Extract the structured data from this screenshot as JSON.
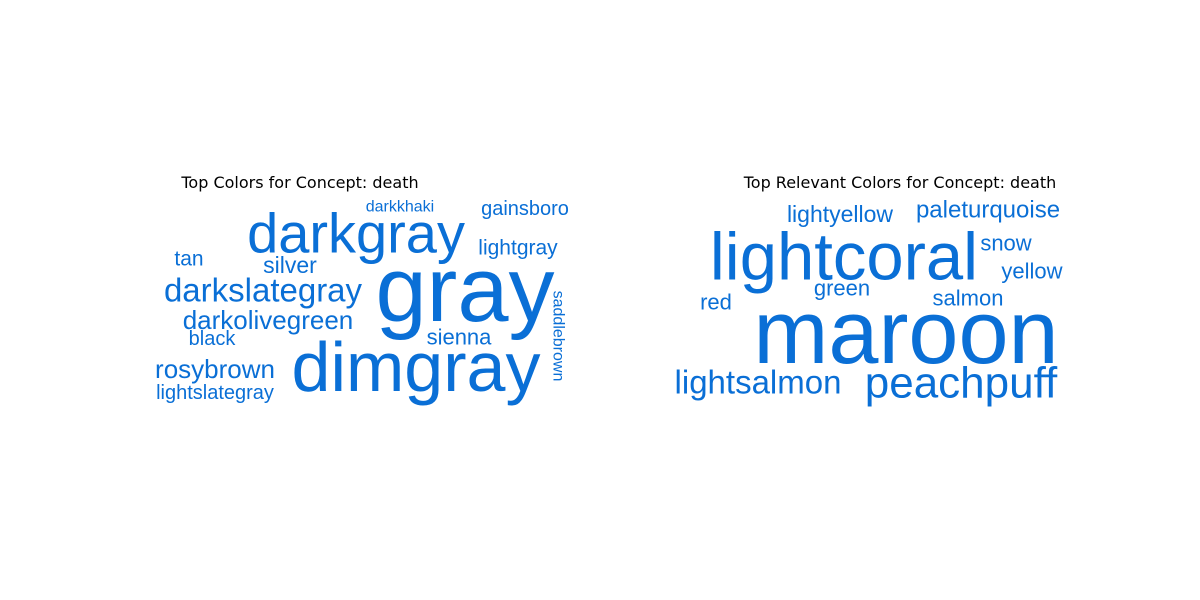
{
  "word_color": "#0a6fd6",
  "chart_data": [
    {
      "type": "wordcloud",
      "title": "Top Colors for Concept: death",
      "words": [
        {
          "text": "gray",
          "weight": 1.0
        },
        {
          "text": "dimgray",
          "weight": 0.92
        },
        {
          "text": "darkgray",
          "weight": 0.74
        },
        {
          "text": "darkslategray",
          "weight": 0.48
        },
        {
          "text": "darkolivegreen",
          "weight": 0.38
        },
        {
          "text": "rosybrown",
          "weight": 0.36
        },
        {
          "text": "silver",
          "weight": 0.33
        },
        {
          "text": "sienna",
          "weight": 0.31
        },
        {
          "text": "lightgray",
          "weight": 0.29
        },
        {
          "text": "lightslategray",
          "weight": 0.28
        },
        {
          "text": "tan",
          "weight": 0.28
        },
        {
          "text": "gainsboro",
          "weight": 0.26
        },
        {
          "text": "black",
          "weight": 0.26
        },
        {
          "text": "saddlebrown",
          "weight": 0.24
        },
        {
          "text": "darkkhaki",
          "weight": 0.22
        }
      ]
    },
    {
      "type": "wordcloud",
      "title": "Top Relevant Colors for Concept: death",
      "words": [
        {
          "text": "maroon",
          "weight": 1.0
        },
        {
          "text": "lightcoral",
          "weight": 0.74
        },
        {
          "text": "peachpuff",
          "weight": 0.54
        },
        {
          "text": "lightsalmon",
          "weight": 0.42
        },
        {
          "text": "paleturquoise",
          "weight": 0.33
        },
        {
          "text": "lightyellow",
          "weight": 0.32
        },
        {
          "text": "snow",
          "weight": 0.3
        },
        {
          "text": "yellow",
          "weight": 0.3
        },
        {
          "text": "salmon",
          "weight": 0.3
        },
        {
          "text": "green",
          "weight": 0.3
        },
        {
          "text": "red",
          "weight": 0.3
        }
      ]
    }
  ]
}
